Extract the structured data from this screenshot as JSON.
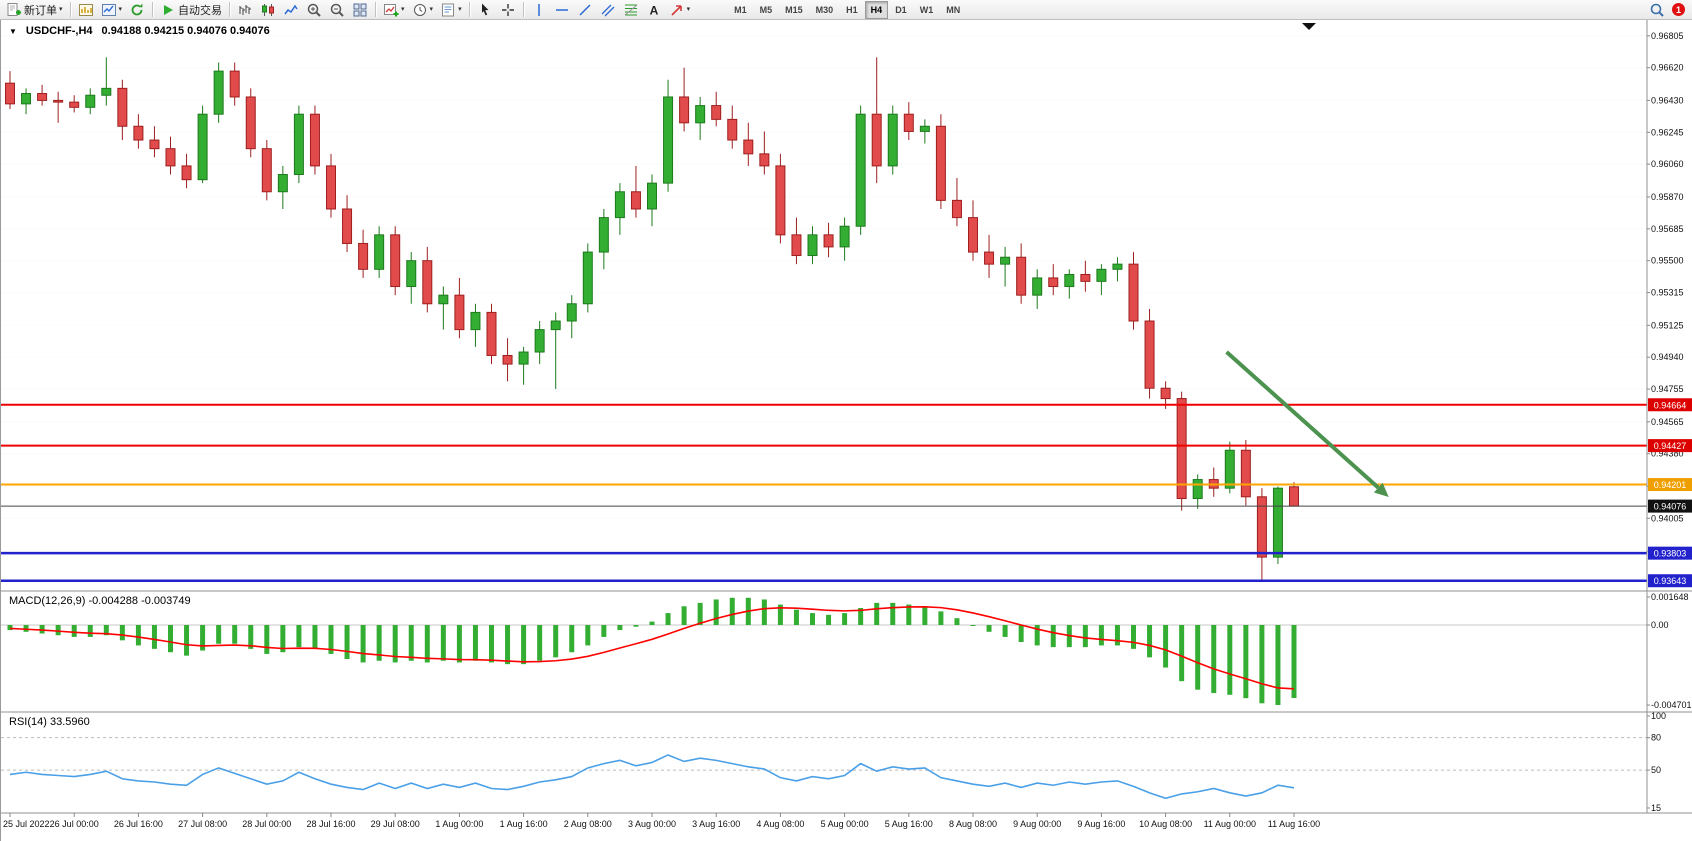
{
  "toolbar": {
    "new_order_label": "新订单",
    "autotrading_label": "自动交易",
    "timeframes": [
      "M1",
      "M5",
      "M15",
      "M30",
      "H1",
      "H4",
      "D1",
      "W1",
      "MN"
    ],
    "active_timeframe": "H4",
    "notification_count": "1",
    "icons": [
      "new-order",
      "market-watch",
      "new-chart",
      "refresh",
      "autotrading-play",
      "bar-chart",
      "candlestick-chart",
      "line-chart",
      "zoom-in",
      "zoom-out",
      "tile-windows",
      "indicators",
      "periods",
      "templates",
      "cursor",
      "crosshair",
      "vertical-line",
      "horizontal-line",
      "trendline",
      "equidistant-channel",
      "fibonacci",
      "text",
      "arrows",
      "search",
      "notifications"
    ]
  },
  "chart": {
    "symbol_period": "USDCHF-,H4",
    "ohlc": "0.94188 0.94215 0.94076 0.94076",
    "open": "0.94188",
    "high": "0.94215",
    "low": "0.94076",
    "close": "0.94076"
  },
  "price_axis": [
    "0.96805",
    "0.96620",
    "0.96430",
    "0.96245",
    "0.96060",
    "0.95870",
    "0.95685",
    "0.95500",
    "0.95315",
    "0.95125",
    "0.94940",
    "0.94755",
    "0.94565",
    "0.94380",
    "0.94190",
    "0.94005",
    "0.93815"
  ],
  "price_lines": [
    {
      "label": "0.94664",
      "price": 0.94664,
      "color": "#f00000",
      "badge": "#dd0000",
      "width": 2
    },
    {
      "label": "0.94427",
      "price": 0.94427,
      "color": "#f00000",
      "badge": "#dd0000",
      "width": 2
    },
    {
      "label": "0.94201",
      "price": 0.94201,
      "color": "#ffa500",
      "badge": "#efa000",
      "width": 2
    },
    {
      "label": "0.94076",
      "price": 0.94076,
      "color": "#444444",
      "badge": "#111111",
      "width": 1,
      "current": true
    },
    {
      "label": "0.93803",
      "price": 0.93803,
      "color": "#2222cc",
      "badge": "#2222cc",
      "width": 2.5
    },
    {
      "label": "0.93643",
      "price": 0.93643,
      "color": "#2222cc",
      "badge": "#2222cc",
      "width": 2.5
    }
  ],
  "time_axis": [
    "25 Jul 2022",
    "26 Jul 00:00",
    "26 Jul 16:00",
    "27 Jul 08:00",
    "28 Jul 00:00",
    "28 Jul 16:00",
    "29 Jul 08:00",
    "1 Aug 00:00",
    "1 Aug 16:00",
    "2 Aug 08:00",
    "3 Aug 00:00",
    "3 Aug 16:00",
    "4 Aug 08:00",
    "5 Aug 00:00",
    "5 Aug 16:00",
    "8 Aug 08:00",
    "9 Aug 00:00",
    "9 Aug 16:00",
    "10 Aug 08:00",
    "11 Aug 00:00",
    "11 Aug 16:00"
  ],
  "indicators": {
    "macd_label": "MACD(12,26,9) -0.004288 -0.003749",
    "macd_axis": [
      "0.001648",
      "0.00",
      "-0.004701"
    ],
    "rsi_label": "RSI(14) 33.5960",
    "rsi_axis": [
      "100",
      "80",
      "50",
      "15"
    ]
  },
  "chart_data": [
    {
      "type": "candlestick",
      "symbol": "USDCHF",
      "period": "H4",
      "title": "USDCHF-,H4",
      "ylim": [
        0.936,
        0.9688
      ],
      "label_every": 4,
      "x_labels": [
        "25 Jul 2022",
        "26 Jul 00:00",
        "26 Jul 16:00",
        "27 Jul 08:00",
        "28 Jul 00:00",
        "28 Jul 16:00",
        "29 Jul 08:00",
        "1 Aug 00:00",
        "1 Aug 16:00",
        "2 Aug 08:00",
        "3 Aug 00:00",
        "3 Aug 16:00",
        "4 Aug 08:00",
        "5 Aug 00:00",
        "5 Aug 16:00",
        "8 Aug 08:00",
        "9 Aug 00:00",
        "9 Aug 16:00",
        "10 Aug 08:00",
        "11 Aug 00:00",
        "11 Aug 16:00"
      ],
      "colors": {
        "up": "#33ae33",
        "up_stroke": "#1d7a1d",
        "down": "#e14b4b",
        "down_stroke": "#9e1f1f"
      },
      "ohlc": [
        [
          0.9653,
          0.966,
          0.9638,
          0.9641
        ],
        [
          0.9641,
          0.965,
          0.9635,
          0.9647
        ],
        [
          0.9647,
          0.9652,
          0.964,
          0.9643
        ],
        [
          0.9643,
          0.9648,
          0.963,
          0.9642
        ],
        [
          0.9642,
          0.9646,
          0.9636,
          0.9639
        ],
        [
          0.9639,
          0.965,
          0.9635,
          0.9646
        ],
        [
          0.9646,
          0.9668,
          0.964,
          0.965
        ],
        [
          0.965,
          0.9655,
          0.962,
          0.9628
        ],
        [
          0.9628,
          0.9635,
          0.9615,
          0.962
        ],
        [
          0.962,
          0.9628,
          0.961,
          0.9615
        ],
        [
          0.9615,
          0.9622,
          0.96,
          0.9605
        ],
        [
          0.9605,
          0.9612,
          0.9592,
          0.9597
        ],
        [
          0.9597,
          0.964,
          0.9595,
          0.9635
        ],
        [
          0.9635,
          0.9665,
          0.963,
          0.966
        ],
        [
          0.966,
          0.9665,
          0.964,
          0.9645
        ],
        [
          0.9645,
          0.965,
          0.961,
          0.9615
        ],
        [
          0.9615,
          0.962,
          0.9585,
          0.959
        ],
        [
          0.959,
          0.9605,
          0.958,
          0.96
        ],
        [
          0.96,
          0.964,
          0.9595,
          0.9635
        ],
        [
          0.9635,
          0.964,
          0.96,
          0.9605
        ],
        [
          0.9605,
          0.9612,
          0.9575,
          0.958
        ],
        [
          0.958,
          0.9588,
          0.9555,
          0.956
        ],
        [
          0.956,
          0.9568,
          0.954,
          0.9545
        ],
        [
          0.9545,
          0.957,
          0.954,
          0.9565
        ],
        [
          0.9565,
          0.957,
          0.953,
          0.9535
        ],
        [
          0.9535,
          0.9555,
          0.9525,
          0.955
        ],
        [
          0.955,
          0.9558,
          0.952,
          0.9525
        ],
        [
          0.9525,
          0.9535,
          0.951,
          0.953
        ],
        [
          0.953,
          0.954,
          0.9505,
          0.951
        ],
        [
          0.951,
          0.9525,
          0.95,
          0.952
        ],
        [
          0.952,
          0.9525,
          0.949,
          0.9495
        ],
        [
          0.9495,
          0.9505,
          0.948,
          0.949
        ],
        [
          0.949,
          0.95,
          0.9478,
          0.9497
        ],
        [
          0.9497,
          0.9515,
          0.949,
          0.951
        ],
        [
          0.951,
          0.952,
          0.94755,
          0.9515
        ],
        [
          0.9515,
          0.953,
          0.9505,
          0.9525
        ],
        [
          0.9525,
          0.956,
          0.952,
          0.9555
        ],
        [
          0.9555,
          0.958,
          0.9545,
          0.9575
        ],
        [
          0.9575,
          0.9595,
          0.9565,
          0.959
        ],
        [
          0.959,
          0.9605,
          0.9575,
          0.958
        ],
        [
          0.958,
          0.96,
          0.957,
          0.9595
        ],
        [
          0.9595,
          0.9655,
          0.959,
          0.9645
        ],
        [
          0.9645,
          0.9662,
          0.9625,
          0.963
        ],
        [
          0.963,
          0.9645,
          0.962,
          0.964
        ],
        [
          0.964,
          0.9648,
          0.9628,
          0.9632
        ],
        [
          0.9632,
          0.964,
          0.9615,
          0.962
        ],
        [
          0.962,
          0.963,
          0.9605,
          0.9612
        ],
        [
          0.9612,
          0.9625,
          0.96,
          0.9605
        ],
        [
          0.9605,
          0.9612,
          0.956,
          0.9565
        ],
        [
          0.9565,
          0.9575,
          0.9548,
          0.9553
        ],
        [
          0.9553,
          0.957,
          0.9548,
          0.9565
        ],
        [
          0.9565,
          0.9572,
          0.9552,
          0.9558
        ],
        [
          0.9558,
          0.9575,
          0.955,
          0.957
        ],
        [
          0.957,
          0.964,
          0.9565,
          0.9635
        ],
        [
          0.9635,
          0.9668,
          0.9595,
          0.9605
        ],
        [
          0.9605,
          0.964,
          0.96,
          0.9635
        ],
        [
          0.9635,
          0.9642,
          0.962,
          0.9625
        ],
        [
          0.9625,
          0.9632,
          0.9618,
          0.9628
        ],
        [
          0.9628,
          0.9635,
          0.958,
          0.9585
        ],
        [
          0.9585,
          0.9598,
          0.957,
          0.9575
        ],
        [
          0.9575,
          0.9585,
          0.955,
          0.9555
        ],
        [
          0.9555,
          0.9565,
          0.954,
          0.9548
        ],
        [
          0.9548,
          0.9558,
          0.9535,
          0.9552
        ],
        [
          0.9552,
          0.956,
          0.9525,
          0.953
        ],
        [
          0.953,
          0.9545,
          0.9522,
          0.954
        ],
        [
          0.954,
          0.9548,
          0.953,
          0.9535
        ],
        [
          0.9535,
          0.9545,
          0.9528,
          0.9542
        ],
        [
          0.9542,
          0.955,
          0.9532,
          0.9538
        ],
        [
          0.9538,
          0.9548,
          0.953,
          0.9545
        ],
        [
          0.9545,
          0.9552,
          0.9538,
          0.9548
        ],
        [
          0.9548,
          0.9555,
          0.951,
          0.9515
        ],
        [
          0.9515,
          0.9522,
          0.947,
          0.9476
        ],
        [
          0.9476,
          0.948,
          0.9464,
          0.947
        ],
        [
          0.947,
          0.9474,
          0.9405,
          0.9412
        ],
        [
          0.9412,
          0.9426,
          0.9406,
          0.9423
        ],
        [
          0.9423,
          0.943,
          0.9413,
          0.9418
        ],
        [
          0.9418,
          0.9445,
          0.9415,
          0.944
        ],
        [
          0.944,
          0.9446,
          0.9408,
          0.9413
        ],
        [
          0.9413,
          0.9418,
          0.93643,
          0.9378
        ],
        [
          0.9378,
          0.9419,
          0.9374,
          0.9418
        ],
        [
          0.94188,
          0.94215,
          0.94076,
          0.94076
        ]
      ]
    },
    {
      "type": "bar",
      "name": "MACD(12,26,9)",
      "params": "12,26,9",
      "current": -0.004288,
      "signal_current": -0.003749,
      "ylim": [
        -0.004701,
        0.001648
      ],
      "colors": {
        "histogram": "#33ae33",
        "signal": "#ff0000"
      },
      "values": [
        -0.0003,
        -0.0004,
        -0.0005,
        -0.0006,
        -0.0007,
        -0.0007,
        -0.0006,
        -0.0009,
        -0.0012,
        -0.0014,
        -0.0016,
        -0.0018,
        -0.0015,
        -0.0011,
        -0.0011,
        -0.0014,
        -0.0017,
        -0.0016,
        -0.0013,
        -0.0014,
        -0.0017,
        -0.002,
        -0.0022,
        -0.0021,
        -0.0022,
        -0.0021,
        -0.0022,
        -0.0021,
        -0.0022,
        -0.0021,
        -0.0022,
        -0.0023,
        -0.0023,
        -0.0021,
        -0.0019,
        -0.0016,
        -0.0012,
        -0.0007,
        -0.0003,
        -0.0001,
        0.0002,
        0.0007,
        0.0011,
        0.0013,
        0.0015,
        0.0016,
        0.0016,
        0.0015,
        0.0012,
        0.0009,
        0.0007,
        0.0006,
        0.0007,
        0.001,
        0.0013,
        0.0013,
        0.0012,
        0.0011,
        0.0008,
        0.0004,
        0.0,
        -0.0004,
        -0.0007,
        -0.001,
        -0.0012,
        -0.0013,
        -0.0013,
        -0.0013,
        -0.0012,
        -0.0012,
        -0.0014,
        -0.0019,
        -0.0025,
        -0.0033,
        -0.0038,
        -0.004,
        -0.0041,
        -0.0043,
        -0.0046,
        -0.0047,
        -0.004288
      ],
      "series": [
        {
          "name": "signal",
          "values": [
            -0.0002,
            -0.00025,
            -0.0003,
            -0.00036,
            -0.00043,
            -0.00048,
            -0.00051,
            -0.00059,
            -0.00071,
            -0.00085,
            -0.001,
            -0.00116,
            -0.00123,
            -0.0012,
            -0.00118,
            -0.00122,
            -0.00132,
            -0.00138,
            -0.00136,
            -0.00137,
            -0.00144,
            -0.00155,
            -0.00168,
            -0.00176,
            -0.00185,
            -0.0019,
            -0.00196,
            -0.00199,
            -0.00203,
            -0.00204,
            -0.00207,
            -0.00212,
            -0.00216,
            -0.00215,
            -0.0021,
            -0.002,
            -0.00184,
            -0.00161,
            -0.00135,
            -0.0011,
            -0.00084,
            -0.00053,
            -0.0002,
            0.0001,
            0.00038,
            0.00062,
            0.00082,
            0.00096,
            0.00101,
            0.00099,
            0.00093,
            0.00086,
            0.00083,
            0.00086,
            0.00095,
            0.00102,
            0.00106,
            0.00107,
            0.00102,
            0.00089,
            0.00071,
            0.00049,
            0.00025,
            0.0,
            -0.00024,
            -0.00045,
            -0.00062,
            -0.00076,
            -0.00085,
            -0.00092,
            -0.00102,
            -0.0012,
            -0.00146,
            -0.00183,
            -0.00222,
            -0.00258,
            -0.00288,
            -0.00316,
            -0.00345,
            -0.0037,
            -0.003749
          ]
        }
      ]
    },
    {
      "type": "line",
      "name": "RSI(14)",
      "current": 33.596,
      "ylim": [
        15,
        100
      ],
      "levels": [
        80,
        50
      ],
      "color": "#4aa0e8",
      "values": [
        46,
        48,
        46,
        45,
        44,
        46,
        49,
        42,
        40,
        39,
        37,
        36,
        46,
        52,
        47,
        42,
        37,
        40,
        48,
        42,
        37,
        34,
        32,
        38,
        33,
        38,
        33,
        37,
        34,
        38,
        33,
        32,
        35,
        39,
        41,
        44,
        52,
        56,
        59,
        54,
        57,
        64,
        58,
        61,
        59,
        56,
        53,
        51,
        43,
        40,
        44,
        42,
        45,
        56,
        49,
        53,
        51,
        52,
        43,
        40,
        37,
        35,
        38,
        34,
        38,
        36,
        39,
        37,
        39,
        40,
        35,
        29,
        24,
        28,
        30,
        33,
        29,
        26,
        29,
        36,
        33.596
      ]
    }
  ],
  "annotations": {
    "trend_arrow": {
      "from_bar": 75.8,
      "from_price": 0.9497,
      "to_bar": 85.9,
      "to_price": 0.94129,
      "color": "#4d9350",
      "width": 4
    }
  }
}
